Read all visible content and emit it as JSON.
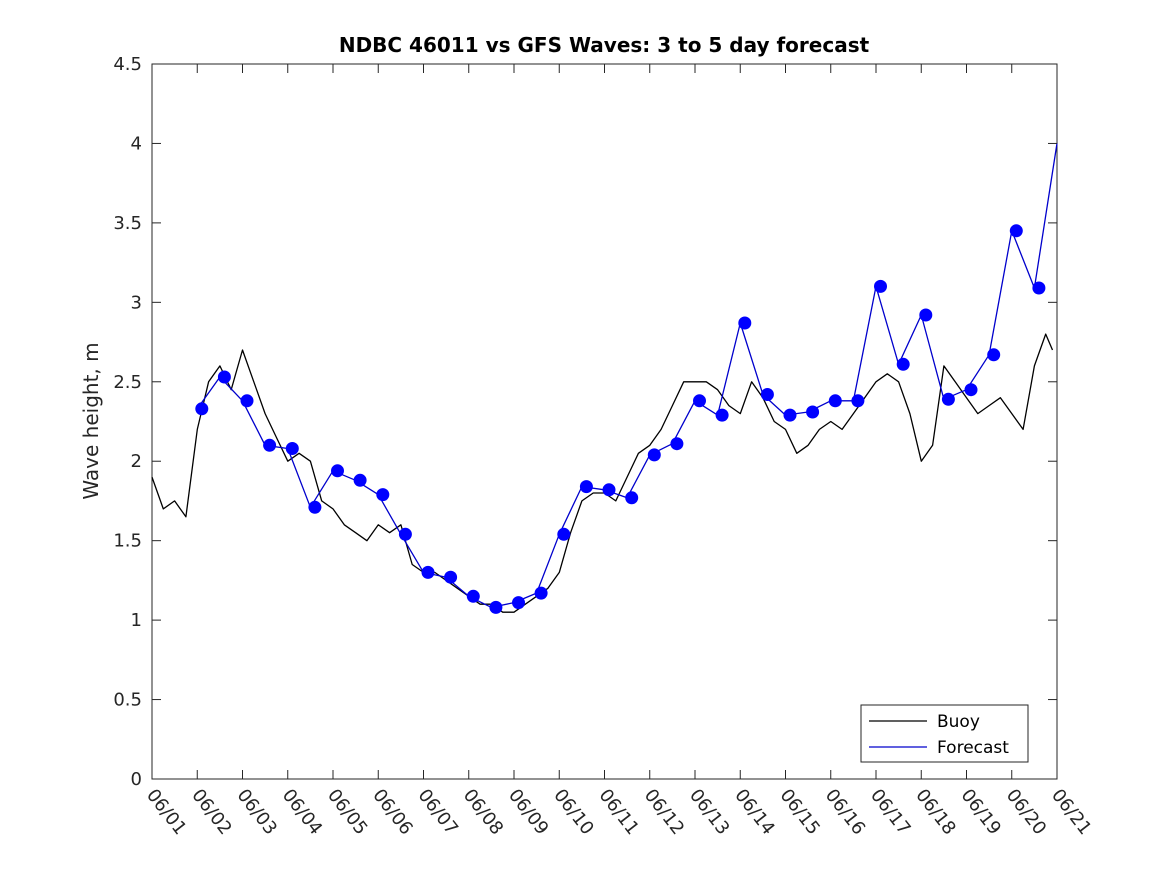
{
  "chart_data": {
    "type": "line",
    "title": "NDBC 46011 vs GFS Waves: 3 to 5 day forecast",
    "xlabel": "",
    "ylabel": "Wave height, m",
    "xlim": [
      0,
      20
    ],
    "ylim": [
      0,
      4.5
    ],
    "x_tick_labels": [
      "06/01",
      "06/02",
      "06/03",
      "06/04",
      "06/05",
      "06/06",
      "06/07",
      "06/08",
      "06/09",
      "06/10",
      "06/11",
      "06/12",
      "06/13",
      "06/14",
      "06/15",
      "06/16",
      "06/17",
      "06/18",
      "06/19",
      "06/20",
      "06/21"
    ],
    "y_ticks": [
      0,
      0.5,
      1,
      1.5,
      2,
      2.5,
      3,
      3.5,
      4,
      4.5
    ],
    "y_tick_labels": [
      "0",
      "0.5",
      "1",
      "1.5",
      "2",
      "2.5",
      "3",
      "3.5",
      "4",
      "4.5"
    ],
    "legend": {
      "placement": "bottom-right",
      "entries": [
        "Buoy",
        "Forecast"
      ]
    },
    "colors": {
      "buoy": "#000000",
      "forecast": "#0000cc",
      "markers": "#0000ff"
    },
    "series": [
      {
        "name": "Buoy",
        "x": [
          0,
          0.25,
          0.5,
          0.75,
          1,
          1.25,
          1.5,
          1.75,
          2,
          2.25,
          2.5,
          2.75,
          3,
          3.25,
          3.5,
          3.75,
          4,
          4.25,
          4.5,
          4.75,
          5,
          5.25,
          5.5,
          5.75,
          6,
          6.25,
          6.5,
          6.75,
          7,
          7.25,
          7.5,
          7.75,
          8,
          8.25,
          8.5,
          8.75,
          9,
          9.25,
          9.5,
          9.75,
          10,
          10.25,
          10.5,
          10.75,
          11,
          11.25,
          11.5,
          11.75,
          12,
          12.25,
          12.5,
          12.75,
          13,
          13.25,
          13.5,
          13.75,
          14,
          14.25,
          14.5,
          14.75,
          15,
          15.25,
          15.5,
          15.75,
          16,
          16.25,
          16.5,
          16.75,
          17,
          17.25,
          17.5,
          17.75,
          18,
          18.25,
          18.5,
          18.75,
          19,
          19.25,
          19.5,
          19.75,
          19.9
        ],
        "y": [
          1.9,
          1.7,
          1.75,
          1.65,
          2.2,
          2.5,
          2.6,
          2.45,
          2.7,
          2.5,
          2.3,
          2.15,
          2.0,
          2.05,
          2.0,
          1.75,
          1.7,
          1.6,
          1.55,
          1.5,
          1.6,
          1.55,
          1.6,
          1.35,
          1.3,
          1.3,
          1.25,
          1.2,
          1.15,
          1.1,
          1.1,
          1.05,
          1.05,
          1.1,
          1.15,
          1.2,
          1.3,
          1.55,
          1.75,
          1.8,
          1.8,
          1.75,
          1.9,
          2.05,
          2.1,
          2.2,
          2.35,
          2.5,
          2.5,
          2.5,
          2.45,
          2.35,
          2.3,
          2.5,
          2.4,
          2.25,
          2.2,
          2.05,
          2.1,
          2.2,
          2.25,
          2.2,
          2.3,
          2.4,
          2.5,
          2.55,
          2.5,
          2.3,
          2.0,
          2.1,
          2.6,
          2.5,
          2.4,
          2.3,
          2.35,
          2.4,
          2.3,
          2.2,
          2.6,
          2.8,
          2.7
        ]
      },
      {
        "name": "Forecast",
        "x": [
          1,
          1.5,
          2,
          2.5,
          3,
          3.5,
          4,
          4.5,
          5,
          5.5,
          6,
          6.5,
          7,
          7.5,
          8,
          8.5,
          9,
          9.5,
          10,
          10.5,
          11,
          11.5,
          12,
          12.5,
          13,
          13.5,
          14,
          14.5,
          15,
          15.5,
          16,
          16.5,
          17,
          17.5,
          18,
          18.5,
          19,
          19.5,
          20
        ],
        "y": [
          2.33,
          2.53,
          2.38,
          2.1,
          2.08,
          1.71,
          1.94,
          1.88,
          1.79,
          1.54,
          1.3,
          1.27,
          1.15,
          1.08,
          1.11,
          1.17,
          1.54,
          1.84,
          1.82,
          1.77,
          2.04,
          2.11,
          2.38,
          2.29,
          2.87,
          2.42,
          2.29,
          2.31,
          2.38,
          2.38,
          3.1,
          2.61,
          2.92,
          2.39,
          2.45,
          2.67,
          3.45,
          3.09,
          4.0
        ]
      }
    ],
    "markers": {
      "x": [
        1.1,
        1.6,
        2.1,
        2.6,
        3.1,
        3.6,
        4.1,
        4.6,
        5.1,
        5.6,
        6.1,
        6.6,
        7.1,
        7.6,
        8.1,
        8.6,
        9.1,
        9.6,
        10.1,
        10.6,
        11.1,
        11.6,
        12.1,
        12.6,
        13.1,
        13.6,
        14.1,
        14.6,
        15.1,
        15.6,
        16.1,
        16.6,
        17.1,
        17.6,
        18.1,
        18.6,
        19.1,
        19.6
      ],
      "y": [
        2.33,
        2.53,
        2.38,
        2.1,
        2.08,
        1.71,
        1.94,
        1.88,
        1.79,
        1.54,
        1.3,
        1.27,
        1.15,
        1.08,
        1.11,
        1.17,
        1.54,
        1.84,
        1.82,
        1.77,
        2.04,
        2.11,
        2.38,
        2.29,
        2.87,
        2.42,
        2.29,
        2.31,
        2.38,
        2.38,
        3.1,
        2.61,
        2.92,
        2.39,
        2.45,
        2.67,
        3.45,
        3.09
      ]
    }
  }
}
